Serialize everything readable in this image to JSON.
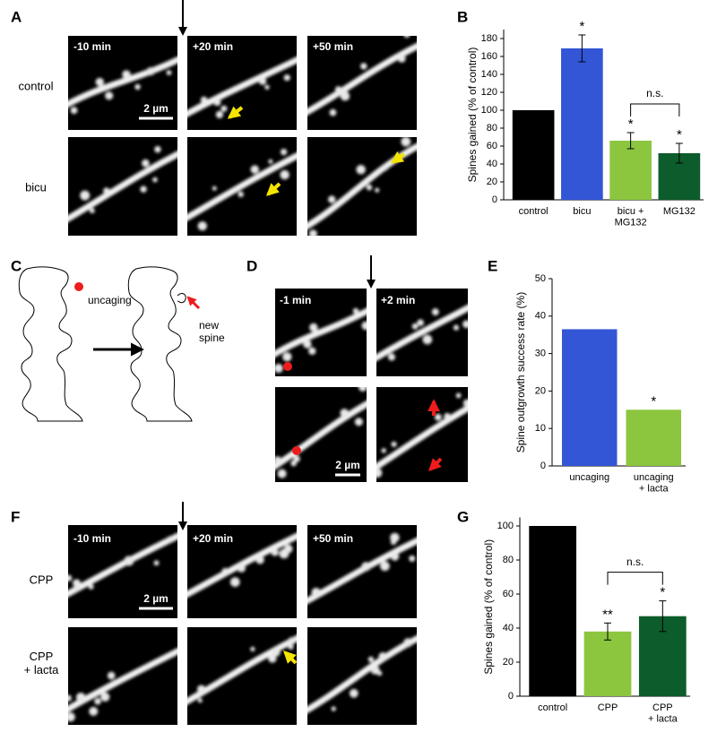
{
  "panel_letters": [
    "A",
    "B",
    "C",
    "D",
    "E",
    "F",
    "G"
  ],
  "panel_a": {
    "times": [
      "-10 min",
      "+20 min",
      "+50 min"
    ],
    "rows": [
      "control",
      "bicu"
    ],
    "scale_bar": "2 µm"
  },
  "panel_c": {
    "labels": [
      "uncaging",
      "new\nspine"
    ]
  },
  "panel_d": {
    "times": [
      "-1 min",
      "+2 min"
    ],
    "scale_bar": "2 µm"
  },
  "panel_f": {
    "times": [
      "-10 min",
      "+20 min",
      "+50 min"
    ],
    "rows": [
      "CPP",
      "CPP\n+ lacta"
    ],
    "scale_bar": "2 µm"
  },
  "chart_data": [
    {
      "type": "bar",
      "ylabel": "Spines gained (% of control)",
      "categories": [
        "control",
        "bicu",
        "bicu +\nMG132",
        "MG132"
      ],
      "values": [
        100,
        169,
        66,
        52
      ],
      "errors": [
        null,
        15,
        9,
        11
      ],
      "colors": [
        "#000000",
        "#3356d6",
        "#8cc63f",
        "#0d5c2b"
      ],
      "significance": [
        null,
        "*",
        "*",
        "*"
      ],
      "brackets": [
        {
          "label": "n.s.",
          "categories": [
            "bicu +\nMG132",
            "MG132"
          ]
        }
      ],
      "ylim": [
        0,
        190
      ],
      "yticks": [
        0,
        20,
        40,
        60,
        80,
        100,
        120,
        140,
        160,
        180
      ]
    },
    {
      "type": "bar",
      "ylabel": "Spine outgrowth success rate (%)",
      "categories": [
        "uncaging",
        "uncaging\n+ lacta"
      ],
      "values": [
        36.5,
        15
      ],
      "colors": [
        "#3356d6",
        "#8cc63f"
      ],
      "significance": [
        null,
        "*"
      ],
      "ylim": [
        0,
        50
      ],
      "yticks": [
        0,
        10,
        20,
        30,
        40,
        50
      ]
    },
    {
      "type": "bar",
      "ylabel": "Spines gained (% of control)",
      "categories": [
        "control",
        "CPP",
        "CPP\n+ lacta"
      ],
      "values": [
        100,
        38,
        47
      ],
      "errors": [
        null,
        5,
        9
      ],
      "colors": [
        "#000000",
        "#8cc63f",
        "#0d5c2b"
      ],
      "significance": [
        null,
        "**",
        "*"
      ],
      "brackets": [
        {
          "label": "n.s.",
          "categories": [
            "CPP",
            "CPP\n+ lacta"
          ]
        }
      ],
      "ylim": [
        0,
        105
      ],
      "yticks": [
        0,
        20,
        40,
        60,
        80,
        100
      ]
    }
  ]
}
